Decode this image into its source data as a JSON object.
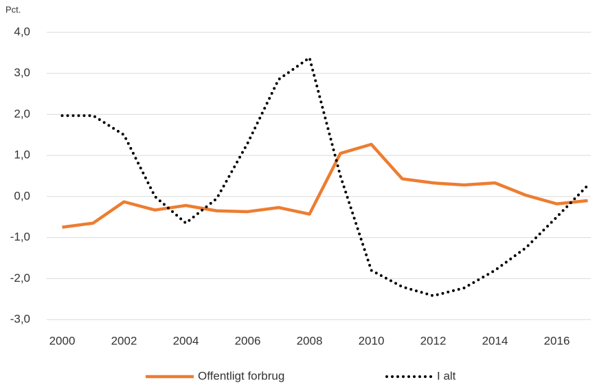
{
  "chart_data": {
    "type": "line",
    "y_label": "Pct.",
    "x": [
      2000,
      2001,
      2002,
      2003,
      2004,
      2005,
      2006,
      2007,
      2008,
      2009,
      2010,
      2011,
      2012,
      2013,
      2014,
      2015,
      2016,
      2017
    ],
    "series": [
      {
        "name": "Offentligt forbrug",
        "color": "#ed7d31",
        "style": "solid",
        "values": [
          -0.75,
          -0.65,
          -0.13,
          -0.33,
          -0.22,
          -0.35,
          -0.37,
          -0.27,
          -0.43,
          1.05,
          1.27,
          0.43,
          0.33,
          0.28,
          0.33,
          0.03,
          -0.18,
          -0.1
        ]
      },
      {
        "name": "I alt",
        "color": "#000000",
        "style": "dotted",
        "values": [
          1.97,
          1.97,
          1.5,
          0.0,
          -0.65,
          -0.05,
          1.3,
          2.85,
          3.38,
          0.5,
          -1.8,
          -2.2,
          -2.42,
          -2.23,
          -1.8,
          -1.25,
          -0.5,
          0.27
        ]
      }
    ],
    "xlim": [
      1999.5,
      2017.1
    ],
    "xticks": [
      2000,
      2002,
      2004,
      2006,
      2008,
      2010,
      2012,
      2014,
      2016
    ],
    "ylim": [
      -3,
      4
    ],
    "yticks": [
      {
        "value": -3,
        "label": "-3,0"
      },
      {
        "value": -2,
        "label": "-2,0"
      },
      {
        "value": -1,
        "label": "-1,0"
      },
      {
        "value": 0,
        "label": "0,0"
      },
      {
        "value": 1,
        "label": "1,0"
      },
      {
        "value": 2,
        "label": "2,0"
      },
      {
        "value": 3,
        "label": "3,0"
      },
      {
        "value": 4,
        "label": "4,0"
      }
    ],
    "grid": true,
    "legend": "bottom"
  }
}
